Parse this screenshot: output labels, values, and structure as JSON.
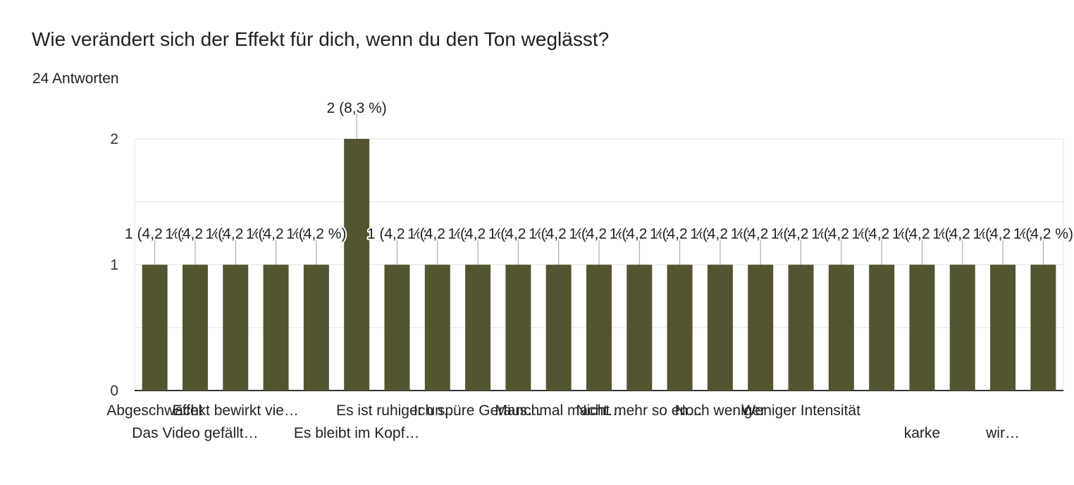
{
  "header": {
    "question": "Wie verändert sich der Effekt für dich, wenn du den Ton weglässt?",
    "responses": "24 Antworten"
  },
  "chart_data": {
    "type": "bar",
    "ylim": [
      0,
      2
    ],
    "yticks": [
      "0",
      "1",
      "2"
    ],
    "grid": true,
    "bar_color": "#545430",
    "categories": [
      "Abgeschwächt",
      "Das Video gefällt…",
      "Effekt bewirkt vie…",
      "",
      "",
      "Es bleibt im Kopf…",
      "Es ist ruhiger un…",
      "",
      "Ich spüre Geräus…",
      "",
      "Manchmal macht…",
      "",
      "Nicht mehr so en…",
      "",
      "Noch weniger",
      "",
      "Weniger Intensität",
      "",
      "",
      "karke",
      "",
      "wir…",
      ""
    ],
    "values": [
      1,
      1,
      1,
      1,
      1,
      2,
      1,
      1,
      1,
      1,
      1,
      1,
      1,
      1,
      1,
      1,
      1,
      1,
      1,
      1,
      1,
      1,
      1
    ],
    "data_labels": [
      "1 (4,2 %)",
      "1 (4,2 %)",
      "1 (4,2 %)",
      "1 (4,2 %)",
      "1 (4,2 %)",
      "2 (8,3 %)",
      "1 (4,2 %)",
      "1 (4,2 %)",
      "1 (4,2 %)",
      "1 (4,2 %)",
      "1 (4,2 %)",
      "1 (4,2 %)",
      "1 (4,2 %)",
      "1 (4,2 %)",
      "1 (4,2 %)",
      "1 (4,2 %)",
      "1 (4,2 %)",
      "1 (4,2 %)",
      "1 (4,2 %)",
      "1 (4,2 %)",
      "1 (4,2 %)",
      "1 (4,2 %)",
      "1 (4,2 %)"
    ]
  }
}
